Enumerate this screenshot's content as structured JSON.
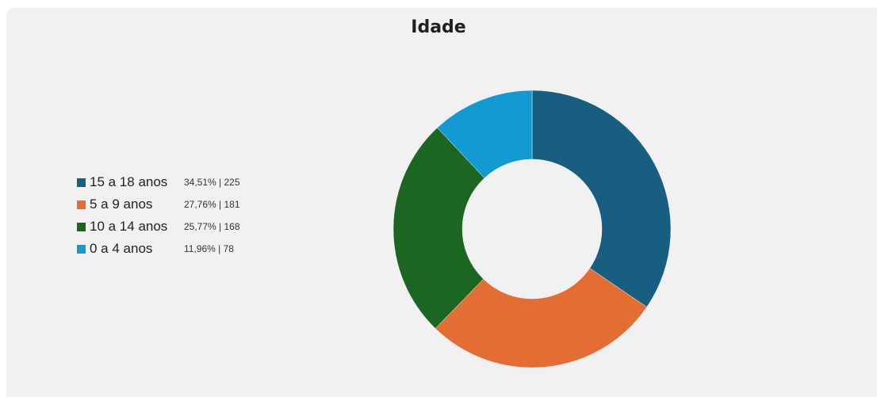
{
  "chart_data": {
    "type": "pie",
    "title": "Idade",
    "donut": true,
    "legend_position": "left",
    "slices": [
      {
        "label": "15 a 18 anos",
        "percent_label": "34,51%",
        "count_label": "225",
        "value": 225,
        "color": "#175e80"
      },
      {
        "label": "5 a 9 anos",
        "percent_label": "27,76%",
        "count_label": "181",
        "value": 181,
        "color": "#e46d33"
      },
      {
        "label": "10 a 14 anos",
        "percent_label": "25,77%",
        "count_label": "168",
        "value": 168,
        "color": "#1b6722"
      },
      {
        "label": "0 a 4 anos",
        "percent_label": "11,96%",
        "count_label": "78",
        "value": 78,
        "color": "#149ad3"
      }
    ]
  }
}
